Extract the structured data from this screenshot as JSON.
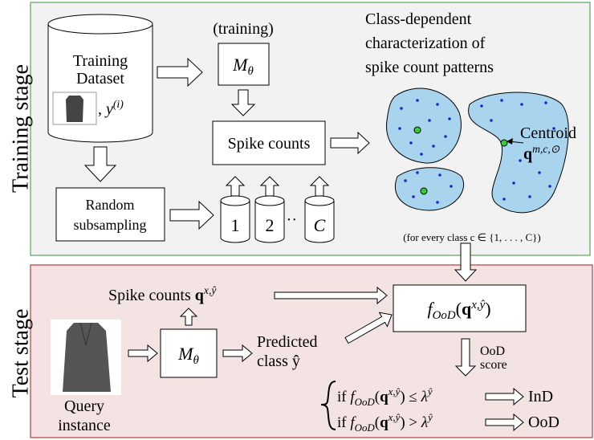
{
  "training_stage": {
    "label": "Training stage",
    "dataset": [
      "Training",
      "Dataset"
    ],
    "label_var": [
      {
        "t": ", ",
        "s": "rm"
      },
      {
        "t": "y",
        "s": "it"
      },
      {
        "t": "(i)",
        "s": "sup"
      }
    ],
    "training_note": "(training)",
    "model": [
      {
        "t": "M",
        "s": "it"
      },
      {
        "t": "θ",
        "s": "sub"
      }
    ],
    "spike_counts": "Spike counts",
    "subsampling": [
      "Random",
      "subsampling"
    ],
    "subsets": [
      "1",
      "2",
      "C"
    ],
    "ellipsis": "···",
    "characterization": [
      "Class-dependent",
      "characterization of",
      "spike count patterns"
    ],
    "centroid": "Centroid",
    "centroid_symbol": [
      {
        "t": "q",
        "s": "bf"
      },
      {
        "t": "m,c,⊙",
        "s": "sup"
      }
    ],
    "note": "(for every class c ∈ {1, . . . , C})"
  },
  "test_stage": {
    "label": "Test stage",
    "spike_counts": [
      {
        "t": "Spike counts ",
        "s": "rm"
      },
      {
        "t": "q",
        "s": "bf"
      },
      {
        "t": "x,ŷ",
        "s": "sup"
      }
    ],
    "query": [
      "Query",
      "instance"
    ],
    "model": [
      {
        "t": "M",
        "s": "it"
      },
      {
        "t": "θ",
        "s": "sub"
      }
    ],
    "predicted": [
      "Predicted",
      "class ŷ"
    ],
    "score_fn": [
      {
        "t": "f",
        "s": "it"
      },
      {
        "t": "OoD",
        "s": "sub"
      },
      {
        "t": "(",
        "s": "rm"
      },
      {
        "t": "q",
        "s": "bf"
      },
      {
        "t": "x,ŷ",
        "s": "sup"
      },
      {
        "t": ")",
        "s": "rm"
      }
    ],
    "score_label": [
      "OoD",
      "score"
    ],
    "rule_ind": [
      {
        "t": "if ",
        "s": "rm"
      },
      {
        "t": "f",
        "s": "it"
      },
      {
        "t": "OoD",
        "s": "sub"
      },
      {
        "t": "(",
        "s": "rm"
      },
      {
        "t": "q",
        "s": "bf"
      },
      {
        "t": "x,ŷ",
        "s": "sup"
      },
      {
        "t": ") ≤ ",
        "s": "rm"
      },
      {
        "t": "λ",
        "s": "it"
      },
      {
        "t": "ŷ",
        "s": "sup"
      }
    ],
    "rule_ood": [
      {
        "t": "if ",
        "s": "rm"
      },
      {
        "t": "f",
        "s": "it"
      },
      {
        "t": "OoD",
        "s": "sub"
      },
      {
        "t": "(",
        "s": "rm"
      },
      {
        "t": "q",
        "s": "bf"
      },
      {
        "t": "x,ŷ",
        "s": "sup"
      },
      {
        "t": ") > ",
        "s": "rm"
      },
      {
        "t": "λ",
        "s": "it"
      },
      {
        "t": "ŷ",
        "s": "sup"
      }
    ],
    "ind": "InD",
    "ood": "OoD"
  }
}
